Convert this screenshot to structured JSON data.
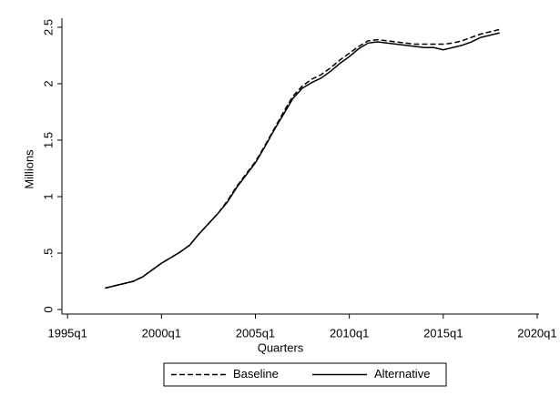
{
  "chart_data": {
    "type": "line",
    "x_label": "Quarters",
    "y_label": "Millions",
    "x": [
      1997,
      1997.5,
      1998,
      1998.5,
      1999,
      1999.5,
      2000,
      2000.5,
      2001,
      2001.5,
      2002,
      2002.5,
      2003,
      2003.5,
      2004,
      2004.5,
      2005,
      2005.5,
      2006,
      2006.5,
      2007,
      2007.5,
      2008,
      2008.5,
      2009,
      2009.5,
      2010,
      2010.5,
      2011,
      2011.5,
      2012,
      2012.5,
      2013,
      2013.5,
      2014,
      2014.5,
      2015,
      2015.5,
      2016,
      2016.5,
      2017,
      2017.5,
      2018
    ],
    "series": [
      {
        "name": "Baseline",
        "color": "#000000",
        "dash": "dashed",
        "values": [
          0.19,
          0.21,
          0.23,
          0.25,
          0.29,
          0.35,
          0.41,
          0.46,
          0.51,
          0.57,
          0.67,
          0.76,
          0.85,
          0.96,
          1.09,
          1.2,
          1.31,
          1.45,
          1.6,
          1.75,
          1.89,
          1.98,
          2.04,
          2.08,
          2.14,
          2.21,
          2.27,
          2.33,
          2.38,
          2.39,
          2.38,
          2.37,
          2.36,
          2.35,
          2.35,
          2.35,
          2.35,
          2.36,
          2.38,
          2.41,
          2.44,
          2.46,
          2.48
        ]
      },
      {
        "name": "Alternative",
        "color": "#000000",
        "dash": "solid",
        "values": [
          0.19,
          0.21,
          0.23,
          0.25,
          0.29,
          0.35,
          0.41,
          0.46,
          0.51,
          0.57,
          0.67,
          0.76,
          0.85,
          0.95,
          1.08,
          1.19,
          1.3,
          1.44,
          1.59,
          1.73,
          1.87,
          1.96,
          2.01,
          2.05,
          2.11,
          2.18,
          2.24,
          2.31,
          2.36,
          2.37,
          2.36,
          2.35,
          2.34,
          2.33,
          2.32,
          2.32,
          2.3,
          2.32,
          2.34,
          2.37,
          2.41,
          2.43,
          2.45
        ]
      }
    ],
    "xlim": [
      1994.7,
      2020.1
    ],
    "xticks": [
      {
        "value": 1995,
        "label": "1995q1"
      },
      {
        "value": 2000,
        "label": "2000q1"
      },
      {
        "value": 2005,
        "label": "2005q1"
      },
      {
        "value": 2010,
        "label": "2010q1"
      },
      {
        "value": 2015,
        "label": "2015q1"
      },
      {
        "value": 2020,
        "label": "2020q1"
      }
    ],
    "ylim": [
      -0.04,
      2.58
    ],
    "yticks": [
      0,
      {
        "value": 0.5,
        "label": ".5"
      },
      1,
      1.5,
      2,
      2.5
    ],
    "legend": "bottom"
  }
}
